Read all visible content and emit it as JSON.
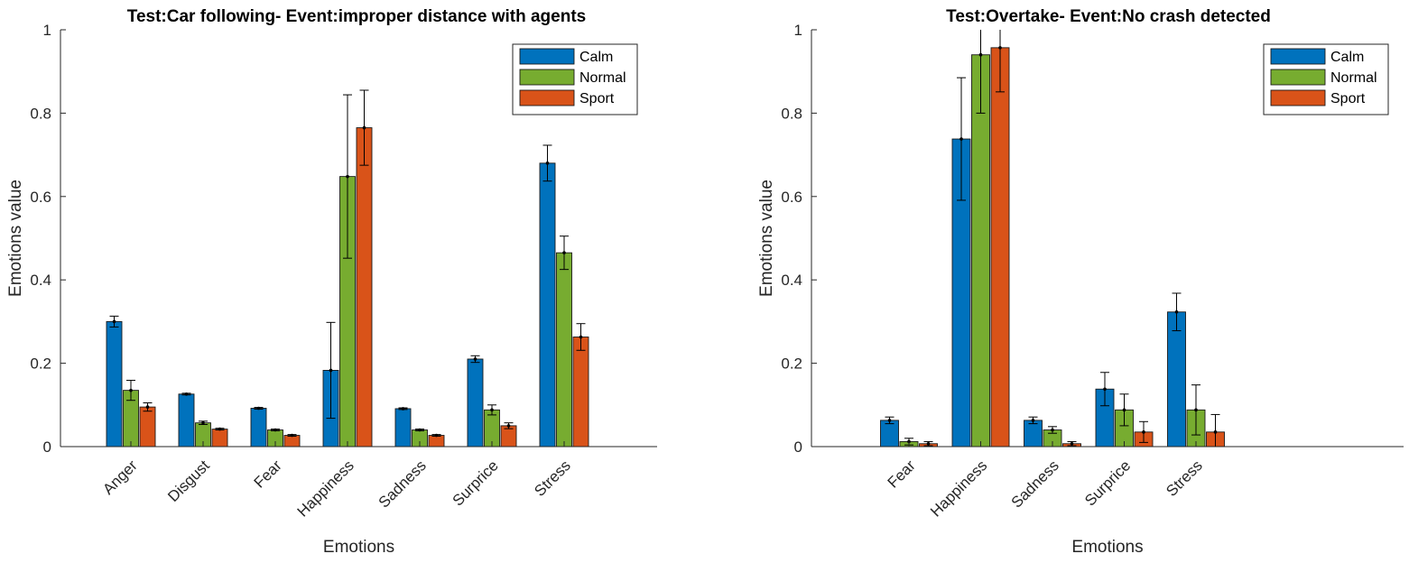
{
  "chart_data": [
    {
      "type": "bar",
      "title": "Test:Car following- Event:improper distance with agents",
      "xlabel": "Emotions",
      "ylabel": "Emotions value",
      "ylim": [
        0,
        1
      ],
      "yticks": [
        "0",
        "0.2",
        "0.4",
        "0.6",
        "0.8",
        "1"
      ],
      "categories": [
        "Anger",
        "Disgust",
        "Fear",
        "Happiness",
        "Sadness",
        "Surprice",
        "Stress"
      ],
      "legend_position": "top-right",
      "series": [
        {
          "name": "Calm",
          "color": "#0072BD",
          "values": [
            0.3,
            0.126,
            0.092,
            0.183,
            0.091,
            0.21,
            0.68
          ],
          "errors": [
            0.013,
            0.002,
            0.002,
            0.115,
            0.002,
            0.008,
            0.043
          ]
        },
        {
          "name": "Normal",
          "color": "#77AC30",
          "values": [
            0.135,
            0.057,
            0.04,
            0.648,
            0.04,
            0.088,
            0.465
          ],
          "errors": [
            0.024,
            0.004,
            0.002,
            0.196,
            0.002,
            0.012,
            0.04
          ]
        },
        {
          "name": "Sport",
          "color": "#D95319",
          "values": [
            0.095,
            0.042,
            0.027,
            0.765,
            0.027,
            0.05,
            0.263
          ],
          "errors": [
            0.01,
            0.002,
            0.002,
            0.09,
            0.002,
            0.007,
            0.032
          ]
        }
      ]
    },
    {
      "type": "bar",
      "title": "Test:Overtake- Event:No crash detected",
      "xlabel": "Emotions",
      "ylabel": "Emotions value",
      "ylim": [
        0,
        1
      ],
      "yticks": [
        "0",
        "0.2",
        "0.4",
        "0.6",
        "0.8",
        "1"
      ],
      "categories": [
        "Fear",
        "Happiness",
        "Sadness",
        "Surprice",
        "Stress"
      ],
      "legend_position": "top-right",
      "series": [
        {
          "name": "Calm",
          "color": "#0072BD",
          "values": [
            0.063,
            0.738,
            0.063,
            0.138,
            0.323
          ],
          "errors": [
            0.008,
            0.147,
            0.008,
            0.04,
            0.045
          ]
        },
        {
          "name": "Normal",
          "color": "#77AC30",
          "values": [
            0.012,
            0.94,
            0.04,
            0.088,
            0.088
          ],
          "errors": [
            0.008,
            0.14,
            0.008,
            0.038,
            0.06
          ]
        },
        {
          "name": "Sport",
          "color": "#D95319",
          "values": [
            0.007,
            0.957,
            0.007,
            0.035,
            0.035
          ],
          "errors": [
            0.005,
            0.106,
            0.005,
            0.025,
            0.042
          ]
        }
      ]
    }
  ]
}
